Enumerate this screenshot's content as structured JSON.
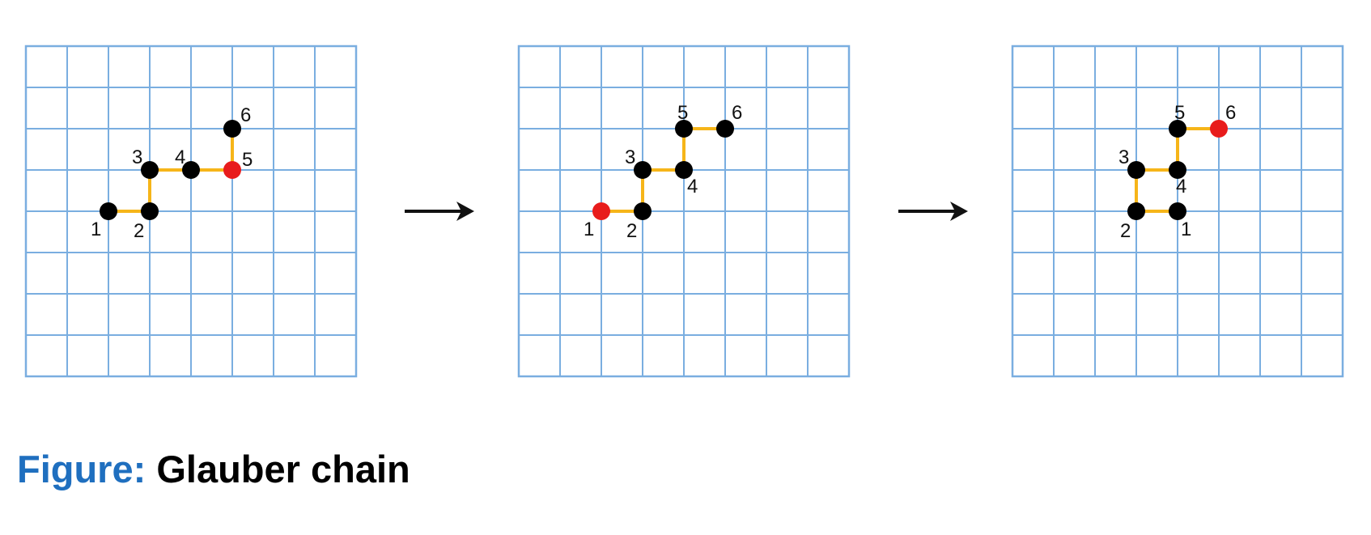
{
  "caption": {
    "label": "Figure:",
    "text": "Glauber chain"
  },
  "colors": {
    "grid": "#7aaee0",
    "bond": "#f6b519",
    "node": "#000000",
    "selected": "#e81c1c",
    "caption_label": "#1f6fbf"
  },
  "lattice": {
    "cols": 8,
    "rows": 8
  },
  "panels": [
    {
      "nodes": [
        {
          "label": "1",
          "col": 2,
          "row": 4
        },
        {
          "label": "2",
          "col": 3,
          "row": 4
        },
        {
          "label": "3",
          "col": 3,
          "row": 3
        },
        {
          "label": "4",
          "col": 4,
          "row": 3
        },
        {
          "label": "5",
          "col": 5,
          "row": 3,
          "selected": true
        },
        {
          "label": "6",
          "col": 5,
          "row": 2
        }
      ]
    },
    {
      "nodes": [
        {
          "label": "1",
          "col": 2,
          "row": 4,
          "selected": true
        },
        {
          "label": "2",
          "col": 3,
          "row": 4
        },
        {
          "label": "3",
          "col": 3,
          "row": 3
        },
        {
          "label": "4",
          "col": 4,
          "row": 3
        },
        {
          "label": "5",
          "col": 4,
          "row": 2
        },
        {
          "label": "6",
          "col": 5,
          "row": 2
        }
      ]
    },
    {
      "nodes": [
        {
          "label": "1",
          "col": 4,
          "row": 4
        },
        {
          "label": "2",
          "col": 3,
          "row": 4
        },
        {
          "label": "3",
          "col": 3,
          "row": 3
        },
        {
          "label": "4",
          "col": 4,
          "row": 3
        },
        {
          "label": "5",
          "col": 4,
          "row": 2
        },
        {
          "label": "6",
          "col": 5,
          "row": 2,
          "selected": true
        }
      ]
    }
  ]
}
